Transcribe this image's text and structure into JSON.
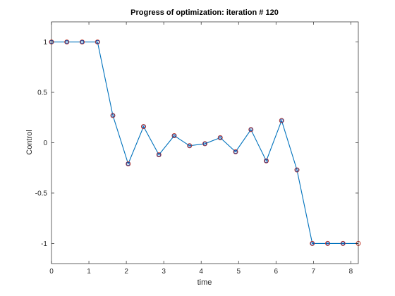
{
  "chart_data": {
    "type": "line",
    "title": "Progress of optimization: iteration # 120",
    "xlabel": "time",
    "ylabel": "Control",
    "xlim": [
      0,
      8.2
    ],
    "ylim": [
      -1.2,
      1.2
    ],
    "xticks": [
      0,
      1,
      2,
      3,
      4,
      5,
      6,
      7,
      8
    ],
    "xtick_labels": [
      "0",
      "1",
      "2",
      "3",
      "4",
      "5",
      "6",
      "7",
      "8"
    ],
    "yticks": [
      -1,
      -0.5,
      0,
      0.5,
      1
    ],
    "ytick_labels": [
      "-1",
      "-0.5",
      "0",
      "0.5",
      "1"
    ],
    "grid": false,
    "box": true,
    "series": [
      {
        "style": "line",
        "color": "#0072BD",
        "x": [
          0,
          0.41,
          0.82,
          1.23,
          1.64,
          2.05,
          2.46,
          2.87,
          3.28,
          3.69,
          4.1,
          4.51,
          4.92,
          5.33,
          5.74,
          6.15,
          6.56,
          6.97,
          7.38,
          7.79,
          8.2
        ],
        "y": [
          1,
          1,
          1,
          1,
          0.27,
          -0.21,
          0.16,
          -0.12,
          0.07,
          -0.03,
          -0.01,
          0.05,
          -0.09,
          0.13,
          -0.18,
          0.22,
          -0.27,
          -1,
          -1,
          -1,
          -1
        ]
      },
      {
        "style": "markers",
        "marker": "circle",
        "color": "#C0392B",
        "x": [
          0,
          0.41,
          0.82,
          1.23,
          1.64,
          2.05,
          2.46,
          2.87,
          3.28,
          3.69,
          4.1,
          4.51,
          4.92,
          5.33,
          5.74,
          6.15,
          6.56,
          6.97,
          7.38,
          7.79,
          8.2
        ],
        "y": [
          1,
          1,
          1,
          1,
          0.27,
          -0.21,
          0.16,
          -0.12,
          0.07,
          -0.03,
          -0.01,
          0.05,
          -0.09,
          0.13,
          -0.18,
          0.22,
          -0.27,
          -1,
          -1,
          -1,
          -1
        ]
      },
      {
        "style": "markers",
        "marker": "square",
        "color": "#1F3A93",
        "x": [
          0,
          0.41,
          0.82,
          1.23,
          1.64,
          2.05,
          2.46,
          2.87,
          3.28,
          3.69,
          4.1,
          4.51,
          4.92,
          5.33,
          5.74,
          6.15,
          6.56,
          6.97,
          7.38,
          7.79
        ],
        "y": [
          1,
          1,
          1,
          1,
          0.27,
          -0.21,
          0.16,
          -0.12,
          0.07,
          -0.03,
          -0.01,
          0.05,
          -0.09,
          0.13,
          -0.18,
          0.22,
          -0.27,
          -1,
          -1,
          -1
        ]
      }
    ]
  }
}
